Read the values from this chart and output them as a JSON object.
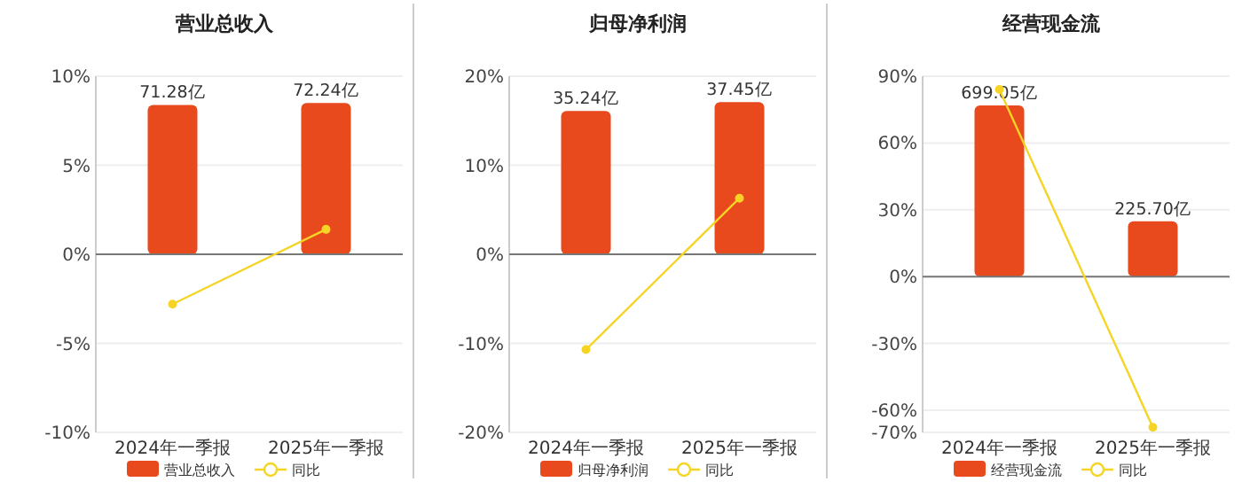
{
  "chart_data": [
    {
      "type": "bar",
      "title": "营业总收入",
      "categories": [
        "2024年一季报",
        "2025年一季报"
      ],
      "ylim": [
        -10,
        10
      ],
      "yticks": [
        {
          "value": 10,
          "label": "10%"
        },
        {
          "value": 5,
          "label": "5%"
        },
        {
          "value": 0,
          "label": "0%"
        },
        {
          "value": -5,
          "label": "-5%"
        },
        {
          "value": -10,
          "label": "-10%"
        }
      ],
      "y2lim": [
        -85,
        85
      ],
      "grid": "y",
      "legend": "bottom",
      "series": [
        {
          "name": "营业总收入",
          "axis": "y2",
          "color": "#e8491d",
          "values": [
            71.28,
            72.24
          ],
          "value_labels": [
            "71.28亿",
            "72.24亿"
          ]
        },
        {
          "name": "同比",
          "type": "line",
          "color": "#f5d426",
          "marker": "circle",
          "values": [
            -2.8,
            1.4
          ]
        }
      ]
    },
    {
      "type": "bar",
      "title": "归母净利润",
      "categories": [
        "2024年一季报",
        "2025年一季报"
      ],
      "ylim": [
        -20,
        20
      ],
      "yticks": [
        {
          "value": 20,
          "label": "20%"
        },
        {
          "value": 10,
          "label": "10%"
        },
        {
          "value": 0,
          "label": "0%"
        },
        {
          "value": -10,
          "label": "-10%"
        },
        {
          "value": -20,
          "label": "-20%"
        }
      ],
      "y2lim": [
        -43.8,
        43.8
      ],
      "grid": "y",
      "legend": "bottom",
      "series": [
        {
          "name": "归母净利润",
          "axis": "y2",
          "color": "#e8491d",
          "values": [
            35.24,
            37.45
          ],
          "value_labels": [
            "35.24亿",
            "37.45亿"
          ]
        },
        {
          "name": "同比",
          "type": "line",
          "color": "#f5d426",
          "marker": "circle",
          "values": [
            -10.7,
            6.3
          ]
        }
      ]
    },
    {
      "type": "bar",
      "title": "经营现金流",
      "categories": [
        "2024年一季报",
        "2025年一季报"
      ],
      "ylim": [
        -70,
        90
      ],
      "yticks": [
        {
          "value": 90,
          "label": "90%"
        },
        {
          "value": 60,
          "label": "60%"
        },
        {
          "value": 30,
          "label": "30%"
        },
        {
          "value": 0,
          "label": "0%"
        },
        {
          "value": -30,
          "label": "-30%"
        },
        {
          "value": -60,
          "label": "-60%"
        },
        {
          "value": -70,
          "label": "-70%"
        }
      ],
      "y2lim": [
        -636,
        818
      ],
      "grid": "y",
      "legend": "bottom",
      "series": [
        {
          "name": "经营现金流",
          "axis": "y2",
          "color": "#e8491d",
          "values": [
            699.05,
            225.7
          ],
          "value_labels": [
            "699.05亿",
            "225.70亿"
          ]
        },
        {
          "name": "同比",
          "type": "line",
          "color": "#f5d426",
          "marker": "circle",
          "values": [
            84,
            -67.7
          ]
        }
      ]
    }
  ]
}
